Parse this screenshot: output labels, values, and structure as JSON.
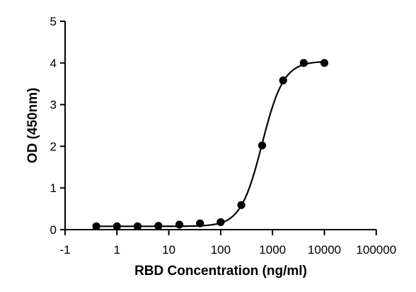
{
  "chart_data": {
    "type": "scatter",
    "title": "",
    "xlabel": "RBD Concentration (ng/ml)",
    "ylabel": "OD (450nm)",
    "x_scale": "log10",
    "x_tick_labels": [
      "-1",
      "1",
      "10",
      "100",
      "1000",
      "10000",
      "100000"
    ],
    "y_tick_labels": [
      "0",
      "1",
      "2",
      "3",
      "4",
      "5"
    ],
    "ylim": [
      0,
      5
    ],
    "grid": false,
    "legend": "none",
    "marker_color": "#000000",
    "line_color": "#000000",
    "series": [
      {
        "points": [
          {
            "x": 0.4,
            "y": 0.08
          },
          {
            "x": 1.0,
            "y": 0.08
          },
          {
            "x": 2.5,
            "y": 0.08
          },
          {
            "x": 6.3,
            "y": 0.09
          },
          {
            "x": 16,
            "y": 0.12
          },
          {
            "x": 40,
            "y": 0.15
          },
          {
            "x": 100,
            "y": 0.18
          },
          {
            "x": 250,
            "y": 0.59
          },
          {
            "x": 630,
            "y": 2.02
          },
          {
            "x": 1600,
            "y": 3.58
          },
          {
            "x": 4000,
            "y": 4.0
          },
          {
            "x": 10000,
            "y": 4.0
          }
        ]
      }
    ],
    "fit_curve": {
      "model": "4PL",
      "bottom": 0.08,
      "top": 4.04,
      "ec50": 630,
      "hill": 2.1,
      "x_range": [
        0.4,
        10000
      ]
    }
  }
}
